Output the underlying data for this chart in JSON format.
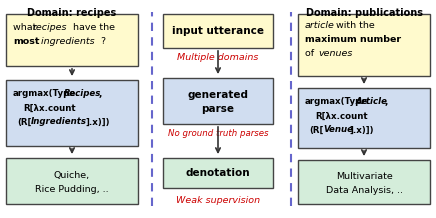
{
  "bg_color": "#ffffff",
  "box_yellow": "#fffacd",
  "box_blue": "#d0ddf0",
  "box_green": "#d4edda",
  "box_center_yellow": "#fffacd",
  "box_center_blue": "#d0ddf0",
  "box_center_green": "#d4edda",
  "dashed_line_color": "#6666cc",
  "red_text_color": "#cc0000",
  "title_left": "Domain: recipes",
  "title_right": "Domain: publications",
  "label1": "Multiple domains",
  "label2": "No ground truth parses",
  "label3": "Weak supervision"
}
